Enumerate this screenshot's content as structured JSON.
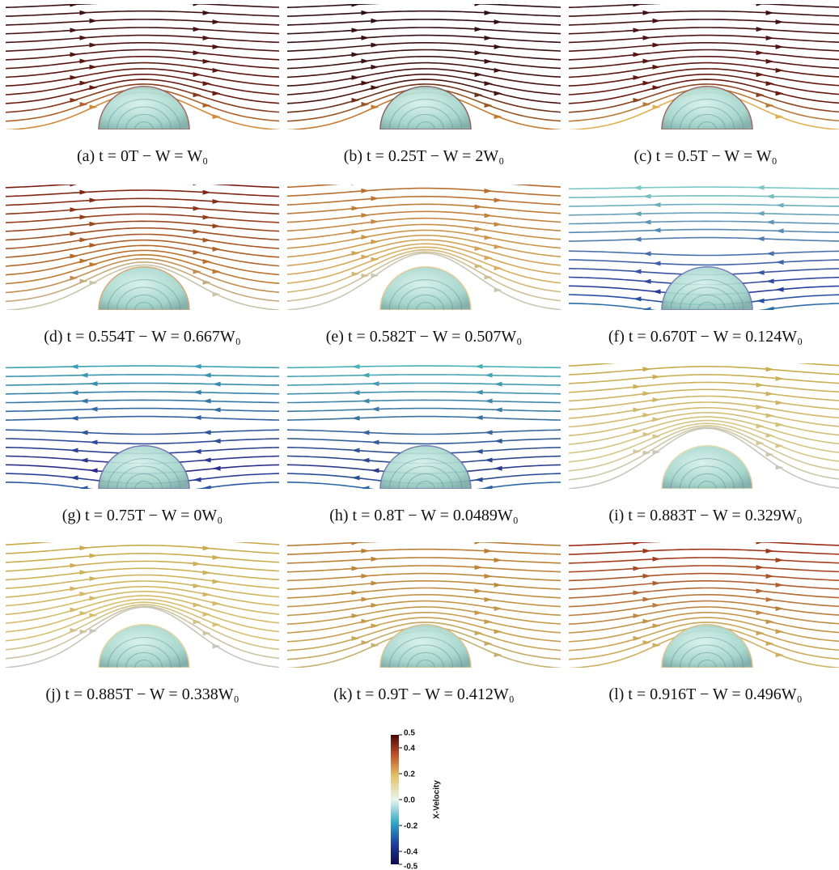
{
  "figure": {
    "panels": [
      {
        "caption": "(a) t = 0T − W = W₀"
      },
      {
        "caption": "(b) t = 0.25T − W = 2W₀"
      },
      {
        "caption": "(c) t = 0.5T − W = W₀"
      },
      {
        "caption": "(d) t = 0.554T − W = 0.667W₀"
      },
      {
        "caption": "(e) t = 0.582T − W = 0.507W₀"
      },
      {
        "caption": "(f) t = 0.670T − W = 0.124W₀"
      },
      {
        "caption": "(g) t = 0.75T − W = 0W₀"
      },
      {
        "caption": "(h) t = 0.8T − W = 0.0489W₀"
      },
      {
        "caption": "(i) t = 0.883T − W = 0.329W₀"
      },
      {
        "caption": "(j) t = 0.885T − W = 0.338W₀"
      },
      {
        "caption": "(k) t = 0.9T − W = 0.412W₀"
      },
      {
        "caption": "(l) t = 0.916T − W = 0.496W₀"
      }
    ],
    "colorbar": {
      "title": "X-Velocity",
      "range": [
        -0.5,
        0.5
      ],
      "ticks": [
        0.5,
        0.4,
        0.2,
        {
          "value": 0,
          "label": "0.0"
        },
        -0.2,
        -0.4,
        -0.5
      ]
    }
  }
}
